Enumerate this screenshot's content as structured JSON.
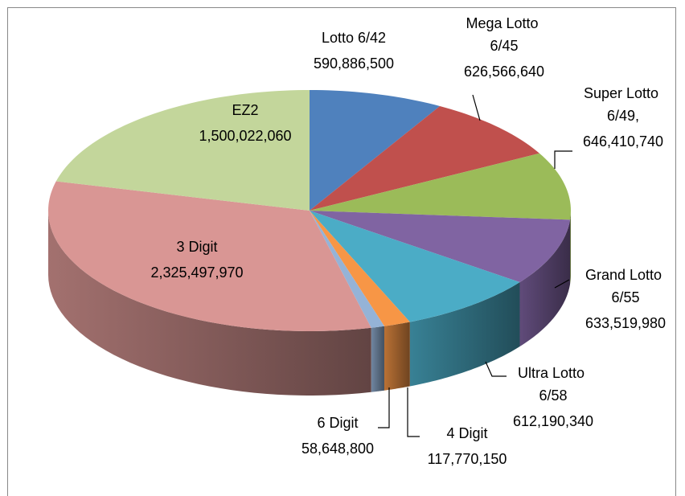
{
  "chart_data": {
    "type": "pie",
    "categories": [
      "Lotto 6/42",
      "Mega Lotto 6/45",
      "Super Lotto 6/49,",
      "Grand Lotto 6/55",
      "Ultra Lotto 6/58",
      "4 Digit",
      "6 Digit",
      "3 Digit",
      "EZ2"
    ],
    "values": [
      590886500,
      626566640,
      646410740,
      633519980,
      612190340,
      117770150,
      58648800,
      2325497970,
      1500022060
    ],
    "value_labels": [
      "590,886,500",
      "626,566,640",
      "646,410,740",
      "633,519,980",
      "612,190,340",
      "117,770,150",
      "58,648,800",
      "2,325,497,970",
      "1,500,022,060"
    ],
    "colors": [
      "#4f81bd",
      "#c0504d",
      "#9bbb59",
      "#8064a2",
      "#4bacc6",
      "#f79646",
      "#95b3d7",
      "#d99694",
      "#c3d69b"
    ]
  }
}
